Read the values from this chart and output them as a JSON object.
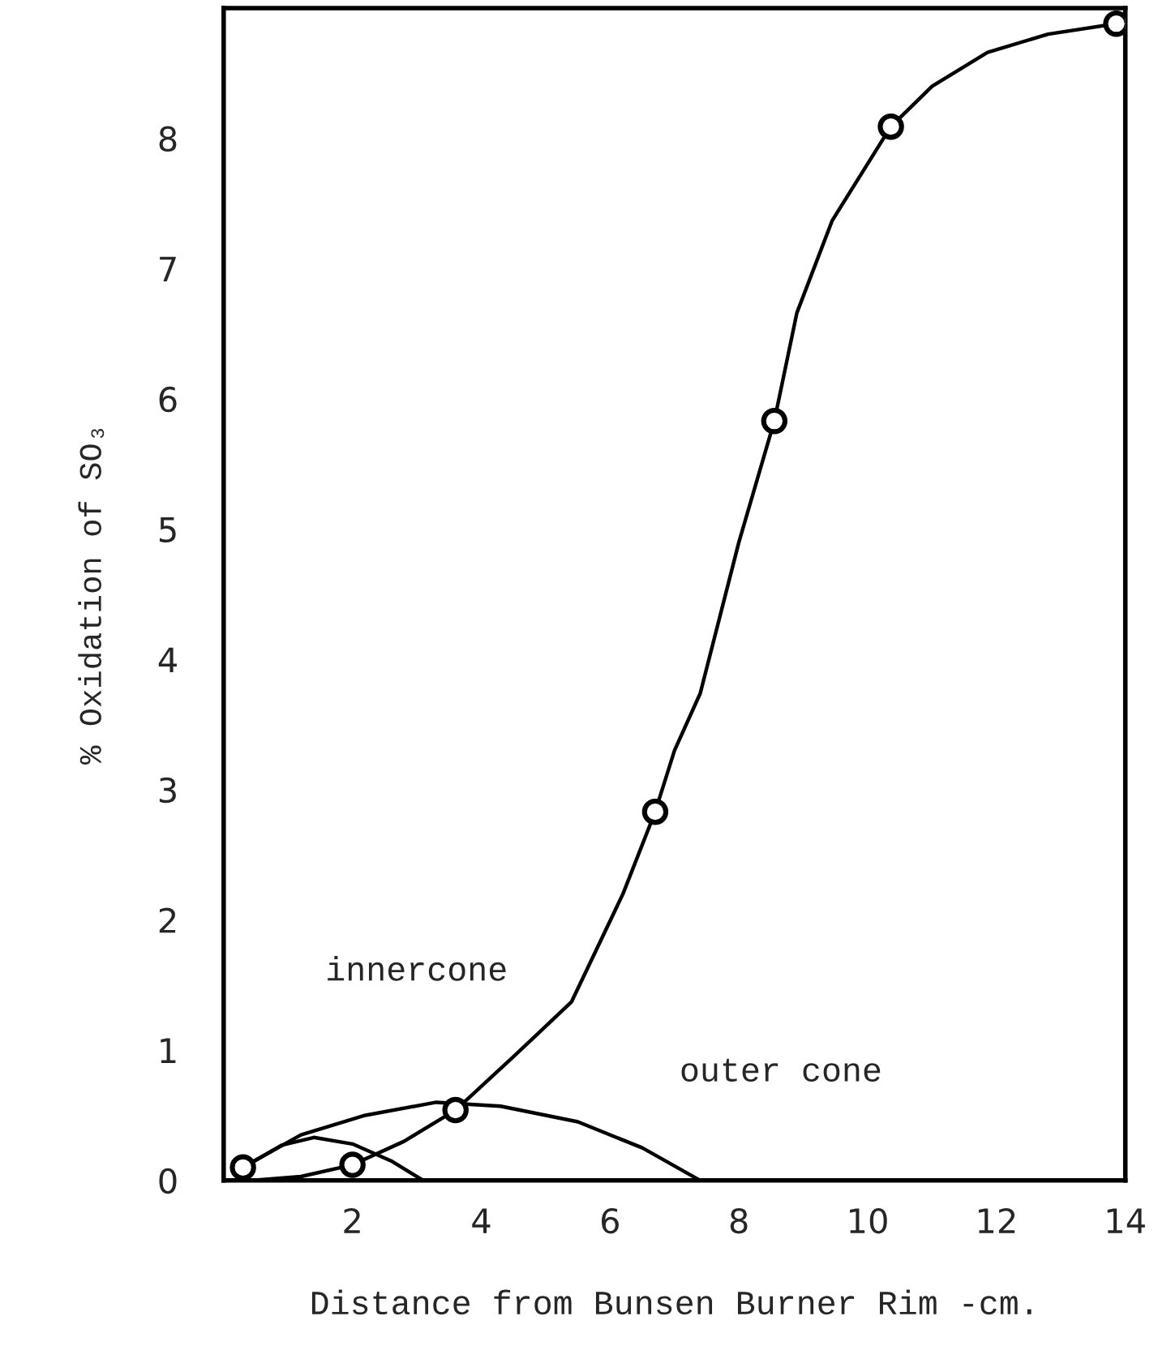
{
  "chart_data": {
    "type": "line",
    "xlabel": "Distance from Bunsen Burner Rim -cm.",
    "ylabel": "% Oxidation of SO₃",
    "xlim": [
      0,
      14
    ],
    "ylim": [
      0,
      9
    ],
    "xticks": [
      2,
      4,
      6,
      8,
      10,
      12,
      14
    ],
    "yticks": [
      0,
      1,
      2,
      3,
      4,
      5,
      6,
      7,
      8
    ],
    "grid": false,
    "series": [
      {
        "color": "#000000",
        "line_style": "solid",
        "marker": "none",
        "x": [
          0.45,
          1.2,
          2.0,
          2.8,
          3.6,
          4.5,
          5.4,
          6.2,
          6.7,
          7.0,
          7.4,
          8.0,
          8.55,
          8.9,
          9.45,
          10.36,
          11.0,
          11.86,
          12.8,
          13.86
        ],
        "values": [
          0,
          0.03,
          0.12,
          0.3,
          0.54,
          0.95,
          1.37,
          2.2,
          2.83,
          3.3,
          3.74,
          4.9,
          5.83,
          6.66,
          7.37,
          8.09,
          8.4,
          8.66,
          8.8,
          8.88
        ]
      },
      {
        "type": "line",
        "color": "#000000",
        "line_style": "solid",
        "marker": "none",
        "x": [
          0.3,
          1.2,
          2.2,
          3.3,
          4.3,
          5.5,
          6.5,
          7.4
        ],
        "values": [
          0.1,
          0.35,
          0.5,
          0.6,
          0.57,
          0.45,
          0.25,
          0
        ]
      },
      {
        "type": "line",
        "color": "#000000",
        "line_style": "solid",
        "marker": "none",
        "x": [
          0.3,
          0.9,
          1.4,
          2.0,
          2.6,
          3.1
        ],
        "values": [
          0.1,
          0.27,
          0.33,
          0.28,
          0.15,
          0
        ]
      },
      {
        "type": "scatter",
        "color": "#000000",
        "marker": "circle",
        "x": [
          0.3,
          2.0,
          3.6,
          6.7,
          8.55,
          10.36,
          13.86
        ],
        "values": [
          0.1,
          0.12,
          0.54,
          2.83,
          5.83,
          8.09,
          8.88
        ]
      }
    ],
    "annotations": [
      "innercone",
      "outer cone"
    ]
  }
}
